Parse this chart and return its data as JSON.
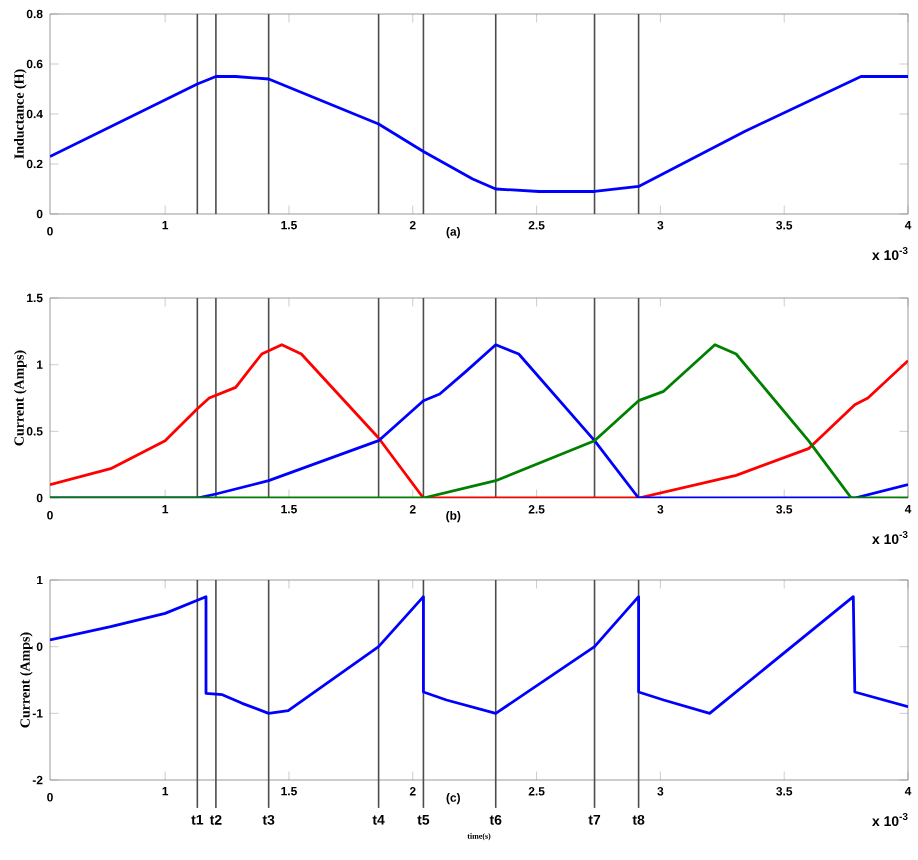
{
  "chart_data": [
    {
      "type": "line",
      "ylabel": "Inductance (H)",
      "annotations": [
        "(a)",
        "x 10$^{-3}$",
        "0"
      ],
      "xlim": [
        0.535,
        4
      ],
      "xticks": [
        1,
        1.5,
        2,
        2.5,
        3,
        3.5,
        4
      ],
      "ylim": [
        0,
        0.8
      ],
      "yticks": [
        0,
        0.2,
        0.4,
        0.6,
        0.8
      ],
      "series": [
        {
          "color": "#0000ff",
          "x": [
            0.535,
            1.13,
            1.205,
            1.285,
            1.418,
            1.862,
            2.043,
            2.242,
            2.335,
            2.51,
            2.734,
            2.912,
            3.34,
            3.81,
            4.0
          ],
          "values": [
            0.23,
            0.52,
            0.55,
            0.55,
            0.54,
            0.36,
            0.25,
            0.14,
            0.1,
            0.09,
            0.09,
            0.11,
            0.33,
            0.55,
            0.55
          ]
        }
      ],
      "ref_lines": [
        {
          "axis": "x",
          "value": 1.13
        },
        {
          "axis": "x",
          "value": 1.205
        },
        {
          "axis": "x",
          "value": 1.418
        },
        {
          "axis": "x",
          "value": 1.862
        },
        {
          "axis": "x",
          "value": 2.043
        },
        {
          "axis": "x",
          "value": 2.335
        },
        {
          "axis": "x",
          "value": 2.734
        },
        {
          "axis": "x",
          "value": 2.912
        }
      ]
    },
    {
      "type": "line",
      "ylabel": "Current (Amps)",
      "annotations": [
        "(b)",
        "x 10$^{-3}$",
        "0"
      ],
      "xlim": [
        0.535,
        4
      ],
      "xticks": [
        1,
        1.5,
        2,
        2.5,
        3,
        3.5,
        4
      ],
      "ylim": [
        0,
        1.5
      ],
      "yticks": [
        0,
        0.5,
        1,
        1.5
      ],
      "series": [
        {
          "color": "#ff0000",
          "x": [
            0.535,
            0.78,
            1.0,
            1.13,
            1.178,
            1.285,
            1.39,
            1.471,
            1.55,
            1.862,
            2.043,
            2.912,
            3.306,
            3.598,
            3.785,
            3.838,
            4.0
          ],
          "values": [
            0.1,
            0.22,
            0.43,
            0.67,
            0.75,
            0.83,
            1.08,
            1.15,
            1.08,
            0.45,
            0,
            0,
            0.17,
            0.37,
            0.7,
            0.75,
            1.03
          ]
        },
        {
          "color": "#0000ff",
          "x": [
            0.535,
            1.13,
            1.205,
            1.418,
            1.862,
            2.043,
            2.109,
            2.215,
            2.335,
            2.428,
            2.734,
            2.912,
            3.785,
            4.0
          ],
          "values": [
            0,
            0,
            0.03,
            0.13,
            0.43,
            0.73,
            0.78,
            0.95,
            1.15,
            1.08,
            0.43,
            0,
            0,
            0.1
          ]
        },
        {
          "color": "#008000",
          "x": [
            0.535,
            2.043,
            2.335,
            2.734,
            2.912,
            3.013,
            3.12,
            3.22,
            3.306,
            3.598,
            3.771,
            4.0
          ],
          "values": [
            0,
            0,
            0.13,
            0.43,
            0.73,
            0.8,
            0.98,
            1.15,
            1.08,
            0.43,
            0,
            0
          ]
        }
      ],
      "ref_lines": [
        {
          "axis": "x",
          "value": 1.13
        },
        {
          "axis": "x",
          "value": 1.205
        },
        {
          "axis": "x",
          "value": 1.418
        },
        {
          "axis": "x",
          "value": 1.862
        },
        {
          "axis": "x",
          "value": 2.043
        },
        {
          "axis": "x",
          "value": 2.335
        },
        {
          "axis": "x",
          "value": 2.734
        },
        {
          "axis": "x",
          "value": 2.912
        }
      ]
    },
    {
      "type": "line",
      "ylabel": "Current (Amps)",
      "xlabel": "time(s)",
      "annotations": [
        "(c)",
        "x 10$^{-3}$",
        "0"
      ],
      "xlim": [
        0.535,
        4
      ],
      "xticks": [
        1,
        1.5,
        2,
        2.5,
        3,
        3.5,
        4
      ],
      "ylim": [
        -2,
        1
      ],
      "yticks": [
        -2,
        -1,
        0,
        1
      ],
      "series": [
        {
          "color": "#0000ff",
          "x": [
            0.535,
            0.78,
            1.0,
            1.165,
            1.165,
            1.231,
            1.311,
            1.418,
            1.497,
            1.862,
            2.043,
            2.043,
            2.136,
            2.335,
            2.734,
            2.912,
            2.912,
            3.013,
            3.199,
            3.779,
            3.785,
            4.0
          ],
          "values": [
            0.1,
            0.3,
            0.5,
            0.75,
            -0.7,
            -0.72,
            -0.85,
            -1,
            -0.96,
            0,
            0.75,
            -0.68,
            -0.8,
            -1,
            0,
            0.75,
            -0.68,
            -0.8,
            -1,
            0.75,
            -0.68,
            -0.9
          ]
        }
      ],
      "ref_lines": [
        {
          "axis": "x",
          "value": 1.13,
          "label": "t1"
        },
        {
          "axis": "x",
          "value": 1.205,
          "label": "t2"
        },
        {
          "axis": "x",
          "value": 1.418,
          "label": "t3"
        },
        {
          "axis": "x",
          "value": 1.862,
          "label": "t4"
        },
        {
          "axis": "x",
          "value": 2.043,
          "label": "t5"
        },
        {
          "axis": "x",
          "value": 2.335,
          "label": "t6"
        },
        {
          "axis": "x",
          "value": 2.734,
          "label": "t7"
        },
        {
          "axis": "x",
          "value": 2.912,
          "label": "t8"
        }
      ]
    }
  ]
}
